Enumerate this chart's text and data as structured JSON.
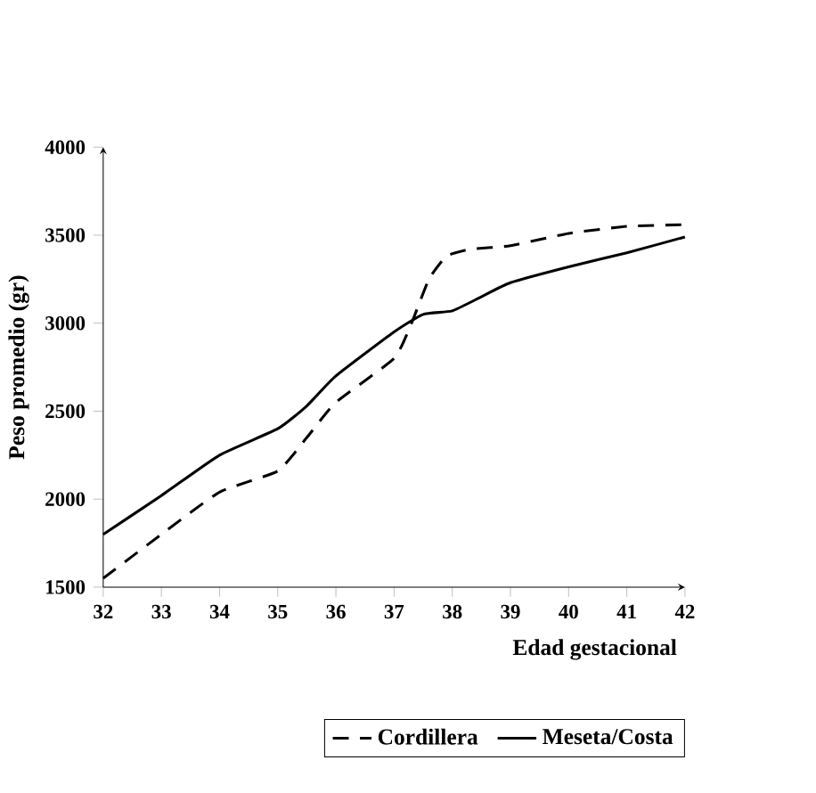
{
  "chart_data": {
    "type": "line",
    "xlabel": "Edad gestacional",
    "ylabel": "Peso promedio (gr)",
    "xlim": [
      32,
      42
    ],
    "xticks": [
      32,
      33,
      34,
      35,
      36,
      37,
      38,
      39,
      40,
      41,
      42
    ],
    "ylim": [
      1500,
      4000
    ],
    "yticks": [
      1500,
      2000,
      2500,
      3000,
      3500,
      4000
    ],
    "grid": false,
    "legend": "bottom",
    "series": [
      {
        "name": "Cordillera",
        "color": "#000000",
        "line_style": "dashed",
        "x": [
          32,
          33,
          34,
          35,
          35.5,
          36,
          37,
          37.3,
          37.6,
          37.9,
          38.3,
          39,
          40,
          41,
          42
        ],
        "values": [
          1550,
          1800,
          2040,
          2160,
          2350,
          2550,
          2800,
          3000,
          3250,
          3380,
          3420,
          3440,
          3510,
          3550,
          3560
        ]
      },
      {
        "name": "Meseta/Costa",
        "color": "#000000",
        "line_style": "solid",
        "x": [
          32,
          33,
          34,
          35,
          35.5,
          36,
          37,
          37.5,
          38,
          38.5,
          39,
          40,
          41,
          42
        ],
        "values": [
          1800,
          2020,
          2250,
          2400,
          2530,
          2700,
          2950,
          3050,
          3070,
          3150,
          3230,
          3320,
          3400,
          3490
        ]
      }
    ]
  }
}
